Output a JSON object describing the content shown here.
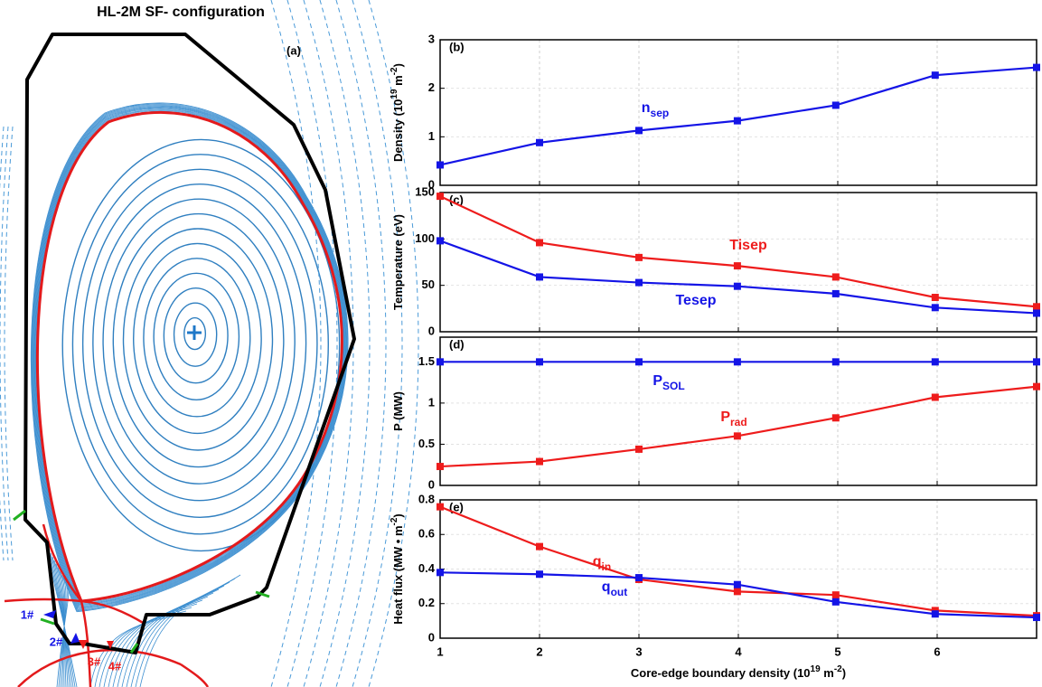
{
  "diagram": {
    "title": "HL-2M SF- configuration",
    "panel_label": "(a)",
    "labels": [
      "1#",
      "2#",
      "3#",
      "4#"
    ]
  },
  "chart_data": [
    {
      "type": "line",
      "panel_label": "(b)",
      "ylabel": [
        "Density (10",
        "19",
        " m",
        "-2",
        ")"
      ],
      "x": [
        1,
        2,
        3,
        3.99,
        4.98,
        5.98,
        7
      ],
      "xlim": [
        1,
        7
      ],
      "xticks": [
        1,
        2,
        3,
        4,
        5,
        6
      ],
      "show_xtick_labels": false,
      "ylim": [
        0,
        3
      ],
      "yticks": [
        0,
        1,
        2,
        3
      ],
      "grid": true,
      "series": [
        {
          "name": "n",
          "sub": "sep",
          "color": "#1414e6",
          "values": [
            0.42,
            0.88,
            1.13,
            1.33,
            1.65,
            2.27,
            2.43
          ]
        }
      ]
    },
    {
      "type": "line",
      "panel_label": "(c)",
      "ylabel": [
        "Temperature (eV)"
      ],
      "x": [
        1,
        2,
        3,
        3.99,
        4.98,
        5.98,
        7
      ],
      "xlim": [
        1,
        7
      ],
      "xticks": [
        1,
        2,
        3,
        4,
        5,
        6
      ],
      "show_xtick_labels": false,
      "ylim": [
        0,
        150
      ],
      "yticks": [
        0,
        50,
        100,
        150
      ],
      "grid": true,
      "series": [
        {
          "name": "Tisep",
          "color": "#ee1c1c",
          "values": [
            146,
            96,
            80,
            71,
            59,
            37,
            27
          ]
        },
        {
          "name": "Tesep",
          "color": "#1414e6",
          "values": [
            98,
            59,
            53,
            49,
            41,
            26,
            20
          ]
        }
      ]
    },
    {
      "type": "line",
      "panel_label": "(d)",
      "ylabel": [
        "P (MW)"
      ],
      "x": [
        1,
        2,
        3,
        3.99,
        4.98,
        5.98,
        7
      ],
      "xlim": [
        1,
        7
      ],
      "xticks": [
        1,
        2,
        3,
        4,
        5,
        6
      ],
      "show_xtick_labels": false,
      "ylim": [
        0,
        1.8
      ],
      "yticks": [
        0,
        0.5,
        1,
        1.5
      ],
      "grid": true,
      "series": [
        {
          "name": "P",
          "sub": "SOL",
          "color": "#1414e6",
          "values": [
            1.5,
            1.5,
            1.5,
            1.5,
            1.5,
            1.5,
            1.5
          ]
        },
        {
          "name": "P",
          "sub": "rad",
          "color": "#ee1c1c",
          "values": [
            0.23,
            0.29,
            0.44,
            0.6,
            0.82,
            1.07,
            1.2
          ]
        }
      ]
    },
    {
      "type": "line",
      "panel_label": "(e)",
      "ylabel": [
        "Heat flux (MW • m",
        "-2",
        ")"
      ],
      "xlabel": [
        "Core-edge boundary density (10",
        "19",
        " m",
        "-2",
        ")"
      ],
      "x": [
        1,
        2,
        3,
        3.99,
        4.98,
        5.98,
        7
      ],
      "xlim": [
        1,
        7
      ],
      "xticks": [
        1,
        2,
        3,
        4,
        5,
        6
      ],
      "show_xtick_labels": true,
      "ylim": [
        0,
        0.8
      ],
      "yticks": [
        0,
        0.2,
        0.4,
        0.6,
        0.8
      ],
      "grid": true,
      "series": [
        {
          "name": "q",
          "sub": "in",
          "color": "#ee1c1c",
          "values": [
            0.76,
            0.53,
            0.34,
            0.27,
            0.25,
            0.16,
            0.13
          ]
        },
        {
          "name": "q",
          "sub": "out",
          "color": "#1414e6",
          "values": [
            0.38,
            0.37,
            0.35,
            0.31,
            0.21,
            0.14,
            0.12
          ]
        }
      ]
    }
  ]
}
